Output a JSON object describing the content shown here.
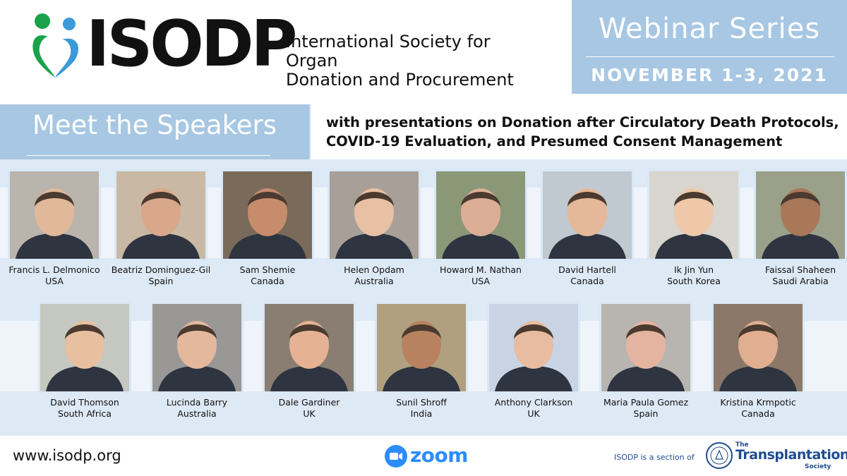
{
  "header": {
    "logo_text": "ISODP",
    "org_name_line1": "International Society for Organ",
    "org_name_line2": "Donation and Procurement",
    "brand_colors": {
      "green": "#1aa24a",
      "blue": "#3b9ad9",
      "light_blue": "#a7c7e3"
    }
  },
  "webinar": {
    "title": "Webinar Series",
    "date": "NOVEMBER 1-3, 2021"
  },
  "banner": {
    "meet": "Meet the Speakers",
    "presentations_line1": "with presentations on Donation after Circulatory Death Protocols,",
    "presentations_line2": "COVID-19 Evaluation, and Presumed Consent Management"
  },
  "speakers_row1": [
    {
      "name": "Francis L. Delmonico",
      "country": "USA"
    },
    {
      "name": "Beatriz Dominguez-Gil",
      "country": "Spain"
    },
    {
      "name": "Sam Shemie",
      "country": "Canada"
    },
    {
      "name": "Helen Opdam",
      "country": "Australia"
    },
    {
      "name": "Howard M. Nathan",
      "country": "USA"
    },
    {
      "name": "David Hartell",
      "country": "Canada"
    },
    {
      "name": "Ik Jin Yun",
      "country": "South Korea"
    },
    {
      "name": "Faissal Shaheen",
      "country": "Saudi Arabia"
    }
  ],
  "speakers_row2": [
    {
      "name": "David Thomson",
      "country": "South Africa"
    },
    {
      "name": "Lucinda Barry",
      "country": "Australia"
    },
    {
      "name": "Dale Gardiner",
      "country": "UK"
    },
    {
      "name": "Sunil Shroff",
      "country": "India"
    },
    {
      "name": "Anthony Clarkson",
      "country": "UK"
    },
    {
      "name": "Maria Paula Gomez",
      "country": "Spain"
    },
    {
      "name": "Kristina Krmpotic",
      "country": "Canada"
    }
  ],
  "footer": {
    "website": "www.isodp.org",
    "zoom": "zoom",
    "section_of": "ISODP is a section of",
    "tts_the": "The",
    "tts_name": "Transplantation",
    "tts_society": "Society"
  }
}
